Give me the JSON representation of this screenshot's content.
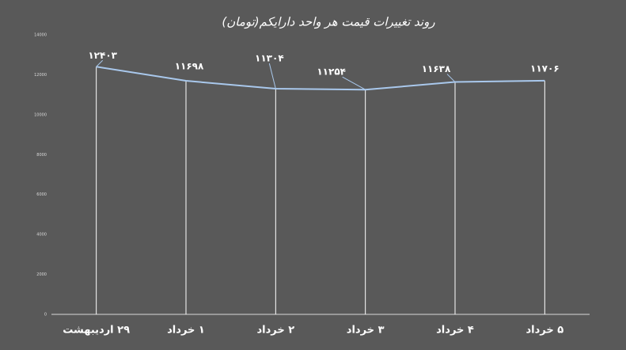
{
  "chart_data": {
    "type": "line",
    "title": "روند تغییرات قیمت هر واحد دارایکم(تومان)",
    "categories": [
      "۲۹ اردیبهشت",
      "۱ خرداد",
      "۲ خرداد",
      "۳ خرداد",
      "۴ خرداد",
      "۵ خرداد"
    ],
    "values": [
      12403,
      11698,
      11304,
      11254,
      11638,
      11706
    ],
    "value_labels": [
      "۱۲۴۰۳",
      "۱۱۶۹۸",
      "۱۱۳۰۴",
      "۱۱۲۵۴",
      "۱۱۶۳۸",
      "۱۱۷۰۶"
    ],
    "color": "#a9c8ec",
    "ylim": [
      0,
      14000
    ],
    "yticks": [
      0,
      2000,
      4000,
      6000,
      8000,
      10000,
      12000,
      14000
    ]
  }
}
